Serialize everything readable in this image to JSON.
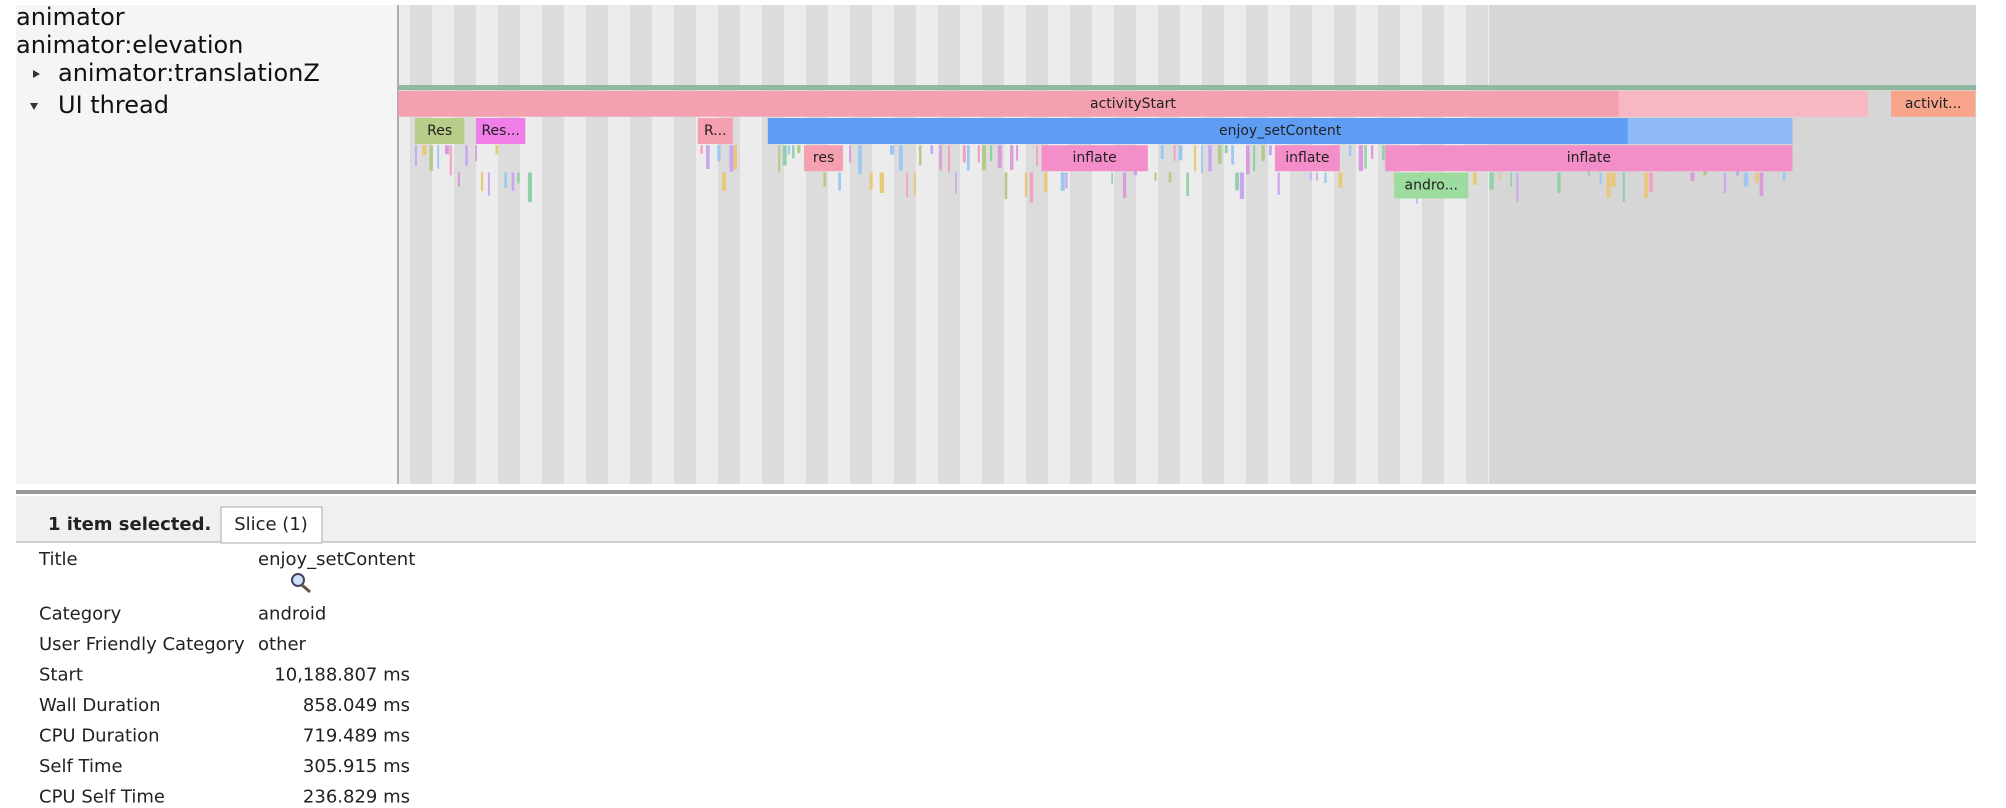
{
  "tracks": [
    "animator",
    "animator:elevation",
    "animator:translationZ",
    "UI thread"
  ],
  "slices": [
    {
      "label": "activityStart"
    },
    {
      "label": "activit..."
    },
    {
      "label": "Res"
    },
    {
      "label": "Res..."
    },
    {
      "label": "R..."
    },
    {
      "label": "enjoy_setContent"
    },
    {
      "label": "res"
    },
    {
      "label": "inflate"
    },
    {
      "label": "inflate"
    },
    {
      "label": "inflate"
    },
    {
      "label": "andro..."
    }
  ],
  "selection": {
    "summary": "1 item selected.",
    "tab": "Slice (1)"
  },
  "details": {
    "rows": [
      [
        "Title",
        "enjoy_setContent"
      ],
      [
        "Category",
        "android"
      ],
      [
        "User Friendly Category",
        "other"
      ],
      [
        "Start",
        "10,188.807 ms"
      ],
      [
        "Wall Duration",
        "858.049 ms"
      ],
      [
        "CPU Duration",
        "719.489 ms"
      ],
      [
        "Self Time",
        "305.915 ms"
      ],
      [
        "CPU Self Time",
        "236.829 ms"
      ]
    ]
  }
}
